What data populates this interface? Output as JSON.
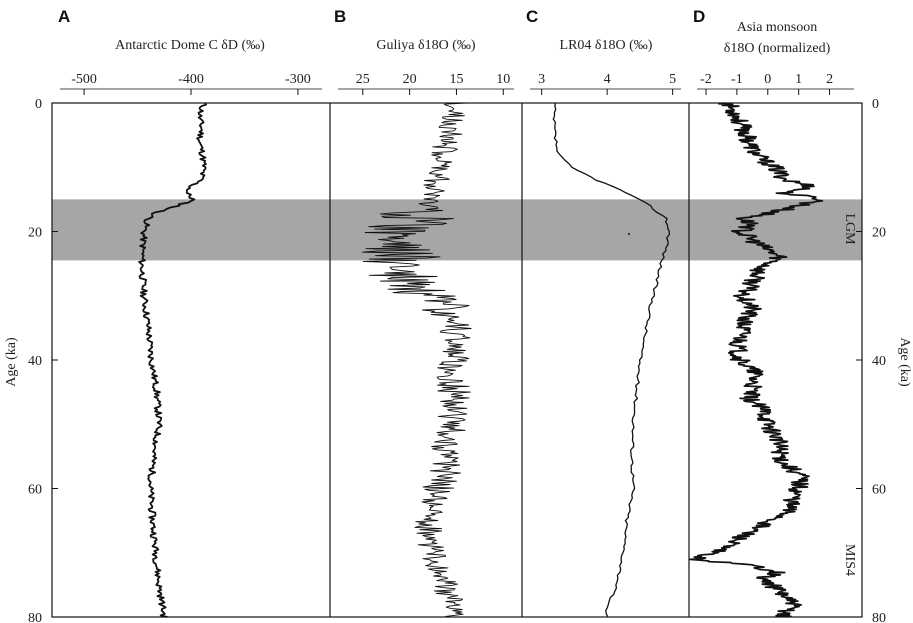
{
  "figure": {
    "left_axis_label": "Age (ka)",
    "right_axis_label": "Age (ka)",
    "left_ticks": [
      "0",
      "20",
      "40",
      "60",
      "80"
    ],
    "right_ticks": [
      "0",
      "20",
      "40",
      "60",
      "80"
    ],
    "ylim": [
      0,
      80
    ],
    "lgm_band_age_range": [
      15,
      24.5
    ],
    "lgm_label": "LGM",
    "mis4_label": "MIS4",
    "band_color": "#a6a6a6",
    "line_color": "#111111"
  },
  "chart_data": [
    {
      "type": "line",
      "panel": "A",
      "xlabel": "Antarctic Dome C δD (‰)",
      "xticks": [
        "-500",
        "-400",
        "-300"
      ],
      "xlim": [
        -530,
        -270
      ],
      "x_reversed": false,
      "y": [
        0,
        2,
        4,
        6,
        8,
        10,
        12,
        13,
        14,
        15,
        16,
        17,
        18,
        20,
        25,
        30,
        35,
        40,
        45,
        50,
        55,
        60,
        65,
        70,
        75,
        80
      ],
      "x": [
        -388,
        -392,
        -390,
        -392,
        -389,
        -388,
        -391,
        -400,
        -404,
        -398,
        -412,
        -432,
        -440,
        -444,
        -446,
        -444,
        -440,
        -437,
        -432,
        -430,
        -435,
        -438,
        -436,
        -433,
        -430,
        -425
      ]
    },
    {
      "type": "line",
      "panel": "B",
      "xlabel": "Guliya δ18O (‰)",
      "xticks": [
        "25",
        "20",
        "15",
        "10"
      ],
      "xlim": [
        28.5,
        8
      ],
      "x_reversed": true,
      "y": [
        0,
        2,
        4,
        6,
        8,
        10,
        12,
        14,
        16,
        18,
        20,
        22,
        24,
        26,
        28,
        30,
        32,
        34,
        36,
        38,
        40,
        42,
        44,
        46,
        48,
        50,
        52,
        54,
        56,
        58,
        60,
        62,
        64,
        66,
        68,
        70,
        72,
        74,
        76,
        78,
        80
      ],
      "x": [
        15,
        15.5,
        15.5,
        16,
        16.5,
        16.5,
        17,
        17.5,
        18,
        19,
        21.5,
        21,
        21,
        21.5,
        20.5,
        19.5,
        17.5,
        15.5,
        15,
        15,
        15.5,
        15.5,
        15.5,
        15,
        15,
        15.5,
        16,
        16,
        16.5,
        16,
        17,
        17.5,
        18,
        18,
        18,
        17.5,
        17,
        16.5,
        16,
        15.5,
        15.5
      ]
    },
    {
      "type": "line",
      "panel": "C",
      "xlabel": "LR04 δ18O (‰)",
      "xticks": [
        "3",
        "4",
        "5"
      ],
      "xlim": [
        2.7,
        5.25
      ],
      "x_reversed": false,
      "y": [
        0,
        2,
        5,
        8,
        10,
        12,
        14,
        16,
        18,
        20,
        22,
        24,
        26,
        28,
        30,
        35,
        40,
        45,
        50,
        55,
        60,
        65,
        70,
        75,
        78,
        80
      ],
      "x": [
        3.2,
        3.18,
        3.2,
        3.25,
        3.45,
        3.85,
        4.3,
        4.65,
        4.9,
        4.95,
        4.92,
        4.85,
        4.8,
        4.75,
        4.7,
        4.6,
        4.5,
        4.45,
        4.4,
        4.38,
        4.4,
        4.3,
        4.25,
        4.15,
        4.0,
        4.0
      ]
    },
    {
      "type": "line",
      "panel": "D",
      "xlabel": "Asia monsoon δ18O (normalized)",
      "xticks": [
        "-2",
        "-1",
        "0",
        "1",
        "2"
      ],
      "xlim": [
        -2.55,
        3.05
      ],
      "x_reversed": false,
      "y": [
        0,
        2,
        4,
        6,
        8,
        10,
        12,
        13,
        14,
        15,
        16,
        17,
        18,
        19,
        20,
        22,
        24,
        26,
        28,
        30,
        32,
        34,
        36,
        38,
        40,
        42,
        44,
        46,
        48,
        50,
        52,
        54,
        56,
        58,
        60,
        62,
        64,
        66,
        68,
        70,
        71,
        72,
        73,
        74,
        76,
        78,
        80
      ],
      "x": [
        -1.3,
        -1.0,
        -0.8,
        -0.6,
        -0.4,
        0.2,
        0.6,
        1.5,
        0.5,
        1.8,
        1.0,
        0.2,
        -0.8,
        -0.5,
        -0.9,
        -0.3,
        0.4,
        -0.3,
        -0.5,
        -0.8,
        -0.5,
        -0.8,
        -0.8,
        -1.0,
        -0.9,
        -0.4,
        -0.5,
        -0.6,
        -0.1,
        0.0,
        0.3,
        0.4,
        0.5,
        1.1,
        1.0,
        0.8,
        0.6,
        -0.3,
        -1.0,
        -1.8,
        -2.4,
        -0.5,
        0.4,
        -0.2,
        0.4,
        0.8,
        0.5
      ]
    }
  ],
  "panels": [
    {
      "letter": "A",
      "title_lines": [
        "Antarctic Dome C δD (‰)"
      ],
      "ticks": [
        "-500",
        "-400",
        "-300"
      ]
    },
    {
      "letter": "B",
      "title_lines": [
        "Guliya δ18O (‰)"
      ],
      "ticks": [
        "25",
        "20",
        "15",
        "10"
      ]
    },
    {
      "letter": "C",
      "title_lines": [
        "LR04 δ18O (‰)"
      ],
      "ticks": [
        "3",
        "4",
        "5"
      ]
    },
    {
      "letter": "D",
      "title_lines": [
        "Asia monsoon",
        "δ18O (normalized)"
      ],
      "ticks": [
        "-2",
        "-1",
        "0",
        "1",
        "2"
      ]
    }
  ]
}
